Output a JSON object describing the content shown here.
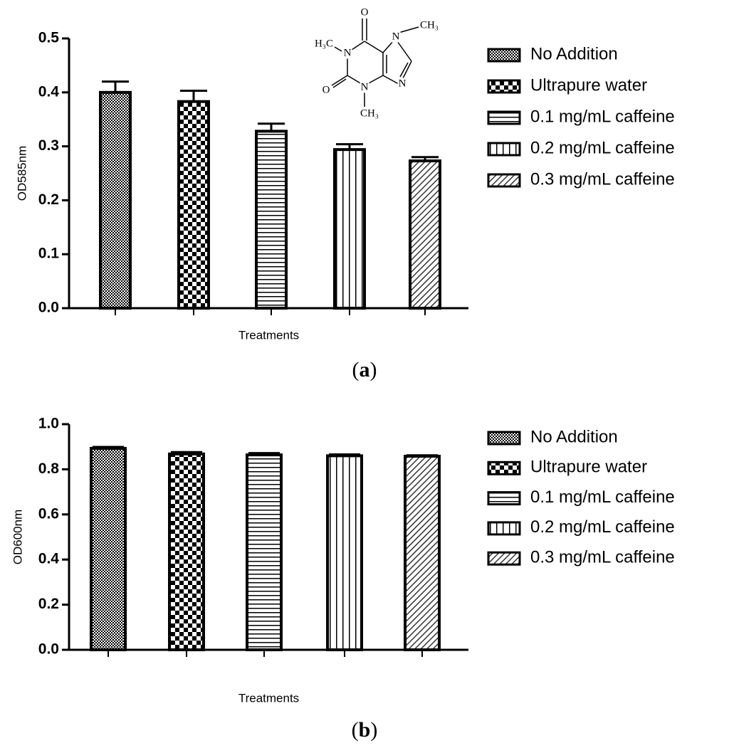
{
  "chart_data": [
    {
      "type": "bar",
      "ylabel": "OD585nm",
      "xlabel": "Treatments",
      "caption": "(a)",
      "ylim": [
        0,
        0.5
      ],
      "yticks": [
        {
          "value": 0,
          "label": "0.0"
        },
        0.1,
        0.2,
        0.3,
        0.4,
        0.5
      ],
      "annotations": [
        "O",
        "CH₃",
        "H₃C",
        "N",
        "N",
        "N",
        "O",
        "N",
        "CH₃"
      ],
      "series": [
        {
          "name": "No Addition",
          "pattern": "fine-check",
          "values": [
            0.4
          ],
          "errors": [
            0.02
          ]
        },
        {
          "name": "Ultrapure water",
          "pattern": "checker",
          "values": [
            0.383
          ],
          "errors": [
            0.02
          ]
        },
        {
          "name": "0.1 mg/mL caffeine",
          "pattern": "horizontal",
          "values": [
            0.328
          ],
          "errors": [
            0.014
          ]
        },
        {
          "name": "0.2 mg/mL caffeine",
          "pattern": "vertical",
          "values": [
            0.294
          ],
          "errors": [
            0.01
          ]
        },
        {
          "name": "0.3 mg/mL caffeine",
          "pattern": "diagonal",
          "values": [
            0.273
          ],
          "errors": [
            0.007
          ]
        }
      ]
    },
    {
      "type": "bar",
      "ylabel": "OD600nm",
      "xlabel": "Treatments",
      "caption": "(b)",
      "ylim": [
        0,
        1
      ],
      "yticks": [
        {
          "value": 0,
          "label": "0.0"
        },
        0.2,
        0.4,
        0.6,
        0.8,
        {
          "value": 1,
          "label": "1.0"
        }
      ],
      "series": [
        {
          "name": "No Addition",
          "pattern": "fine-check",
          "values": [
            0.893
          ],
          "errors": [
            0.006
          ]
        },
        {
          "name": "Ultrapure water",
          "pattern": "checker",
          "values": [
            0.868
          ],
          "errors": [
            0.008
          ]
        },
        {
          "name": "0.1 mg/mL caffeine",
          "pattern": "horizontal",
          "values": [
            0.864
          ],
          "errors": [
            0.008
          ]
        },
        {
          "name": "0.2 mg/mL caffeine",
          "pattern": "vertical",
          "values": [
            0.86
          ],
          "errors": [
            0.006
          ]
        },
        {
          "name": "0.3 mg/mL caffeine",
          "pattern": "diagonal",
          "values": [
            0.858
          ],
          "errors": [
            0.004
          ]
        }
      ]
    }
  ]
}
